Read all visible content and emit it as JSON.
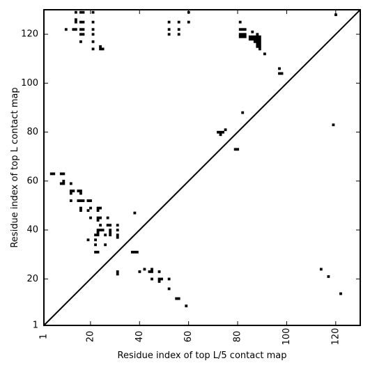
{
  "chart_data": {
    "type": "scatter",
    "title": "",
    "xlabel": "Residue index of top L/5 contact map",
    "ylabel": "Residue index of top L contact map",
    "xlim": [
      1,
      130
    ],
    "ylim": [
      1,
      130
    ],
    "x_ticks": [
      {
        "value": 1,
        "label": "1"
      },
      {
        "value": 20,
        "label": "20"
      },
      {
        "value": 40,
        "label": "40"
      },
      {
        "value": 60,
        "label": "60"
      },
      {
        "value": 80,
        "label": "80"
      },
      {
        "value": 100,
        "label": "100"
      },
      {
        "value": 120,
        "label": "120"
      }
    ],
    "y_ticks": [
      {
        "value": 1,
        "label": "1"
      },
      {
        "value": 20,
        "label": "20"
      },
      {
        "value": 40,
        "label": "40"
      },
      {
        "value": 60,
        "label": "60"
      },
      {
        "value": 80,
        "label": "80"
      },
      {
        "value": 100,
        "label": "100"
      },
      {
        "value": 120,
        "label": "120"
      }
    ],
    "diagonal": true,
    "grid": false,
    "colors": {
      "marks": "#000000",
      "background": "#ffffff"
    },
    "series": [
      {
        "region": "upper-left",
        "points": [
          [
            14,
            129
          ],
          [
            16,
            129
          ],
          [
            17,
            129
          ],
          [
            21,
            129
          ],
          [
            60,
            129
          ],
          [
            14,
            126
          ],
          [
            14,
            125
          ],
          [
            16,
            125
          ],
          [
            17,
            125
          ],
          [
            21,
            125
          ],
          [
            52,
            125
          ],
          [
            56,
            125
          ],
          [
            60,
            125
          ],
          [
            81,
            125
          ],
          [
            10,
            122
          ],
          [
            13,
            122
          ],
          [
            14,
            122
          ],
          [
            16,
            122
          ],
          [
            17,
            122
          ],
          [
            21,
            122
          ],
          [
            52,
            122
          ],
          [
            56,
            122
          ],
          [
            81,
            122
          ],
          [
            82,
            122
          ],
          [
            83,
            122
          ],
          [
            86,
            121
          ],
          [
            88,
            120
          ],
          [
            16,
            120
          ],
          [
            17,
            120
          ],
          [
            21,
            120
          ],
          [
            52,
            120
          ],
          [
            56,
            120
          ],
          [
            81,
            120
          ],
          [
            82,
            120
          ],
          [
            83,
            120
          ],
          [
            81,
            119
          ],
          [
            82,
            119
          ],
          [
            83,
            119
          ],
          [
            85,
            119
          ],
          [
            86,
            119
          ],
          [
            87,
            119
          ],
          [
            88,
            119
          ],
          [
            89,
            119
          ],
          [
            85,
            118
          ],
          [
            86,
            118
          ],
          [
            87,
            118
          ],
          [
            88,
            118
          ],
          [
            89,
            118
          ],
          [
            87,
            117
          ],
          [
            88,
            117
          ],
          [
            89,
            117
          ],
          [
            16,
            117
          ],
          [
            21,
            117
          ],
          [
            88,
            116
          ],
          [
            89,
            116
          ],
          [
            88,
            115
          ],
          [
            89,
            115
          ],
          [
            89,
            114
          ],
          [
            21,
            114
          ],
          [
            24,
            115
          ],
          [
            24,
            114
          ],
          [
            25,
            114
          ],
          [
            91,
            112
          ],
          [
            97,
            106
          ],
          [
            97,
            104
          ],
          [
            98,
            104
          ],
          [
            82,
            88
          ],
          [
            72,
            80
          ],
          [
            73,
            80
          ],
          [
            74,
            80
          ],
          [
            73,
            79
          ],
          [
            75,
            81
          ],
          [
            79,
            73
          ],
          [
            80,
            73
          ],
          [
            4,
            63
          ],
          [
            5,
            63
          ],
          [
            8,
            63
          ],
          [
            9,
            63
          ],
          [
            8,
            59
          ],
          [
            9,
            59
          ],
          [
            9,
            60
          ],
          [
            12,
            59
          ],
          [
            12,
            56
          ],
          [
            13,
            56
          ],
          [
            15,
            56
          ],
          [
            16,
            56
          ],
          [
            12,
            55
          ],
          [
            16,
            55
          ],
          [
            12,
            52
          ],
          [
            15,
            52
          ],
          [
            16,
            52
          ],
          [
            17,
            52
          ],
          [
            19,
            52
          ],
          [
            20,
            52
          ],
          [
            16,
            49
          ],
          [
            16,
            48
          ],
          [
            19,
            48
          ],
          [
            20,
            49
          ],
          [
            23,
            49
          ],
          [
            24,
            49
          ],
          [
            23,
            48
          ],
          [
            38,
            47
          ],
          [
            20,
            45
          ],
          [
            23,
            45
          ],
          [
            24,
            45
          ],
          [
            27,
            45
          ],
          [
            23,
            44
          ],
          [
            24,
            42
          ],
          [
            27,
            42
          ],
          [
            28,
            42
          ],
          [
            31,
            42
          ],
          [
            23,
            40
          ],
          [
            24,
            40
          ],
          [
            25,
            40
          ],
          [
            28,
            40
          ],
          [
            31,
            40
          ],
          [
            23,
            39
          ],
          [
            28,
            39
          ],
          [
            22,
            38
          ],
          [
            23,
            38
          ],
          [
            26,
            38
          ],
          [
            28,
            38
          ],
          [
            31,
            38
          ],
          [
            31,
            37
          ],
          [
            19,
            36
          ],
          [
            22,
            36
          ],
          [
            22,
            34
          ],
          [
            26,
            34
          ],
          [
            22,
            31
          ],
          [
            23,
            31
          ],
          [
            37,
            31
          ],
          [
            38,
            31
          ],
          [
            39,
            31
          ],
          [
            31,
            23
          ],
          [
            31,
            22
          ],
          [
            40,
            23
          ],
          [
            42,
            24
          ],
          [
            44,
            23
          ],
          [
            45,
            24
          ],
          [
            45,
            23
          ],
          [
            48,
            23
          ],
          [
            45,
            20
          ],
          [
            48,
            20
          ],
          [
            49,
            20
          ],
          [
            52,
            20
          ],
          [
            48,
            19
          ],
          [
            52,
            16
          ],
          [
            55,
            12
          ],
          [
            56,
            12
          ],
          [
            59,
            9
          ]
        ]
      },
      {
        "region": "lower-right",
        "points": [
          [
            120,
            128
          ],
          [
            119,
            83
          ],
          [
            114,
            24
          ],
          [
            117,
            21
          ],
          [
            122,
            14
          ]
        ]
      }
    ]
  }
}
